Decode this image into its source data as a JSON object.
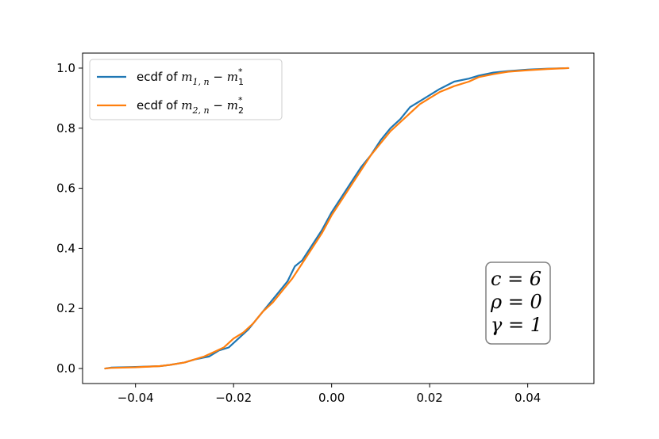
{
  "chart_data": {
    "type": "line",
    "title": "",
    "xlabel": "",
    "ylabel": "",
    "xlim": [
      -0.0508,
      0.0535
    ],
    "ylim": [
      -0.05,
      1.05
    ],
    "x_ticks": [
      -0.04,
      -0.02,
      0.0,
      0.02,
      0.04
    ],
    "x_tick_labels": [
      "−0.04",
      "−0.02",
      "0.00",
      "0.02",
      "0.04"
    ],
    "y_ticks": [
      0.0,
      0.2,
      0.4,
      0.6,
      0.8,
      1.0
    ],
    "y_tick_labels": [
      "0.0",
      "0.2",
      "0.4",
      "0.6",
      "0.8",
      "1.0"
    ],
    "grid": false,
    "legend_position": "top-left",
    "series": [
      {
        "name": "ecdf of m_{1,n} − m_1^*",
        "color": "#1f77b4",
        "x": [
          -0.0462,
          -0.045,
          -0.04,
          -0.035,
          -0.033,
          -0.03,
          -0.028,
          -0.025,
          -0.023,
          -0.021,
          -0.019,
          -0.017,
          -0.015,
          -0.013,
          -0.011,
          -0.009,
          -0.0075,
          -0.006,
          -0.004,
          -0.002,
          0.0,
          0.002,
          0.004,
          0.006,
          0.008,
          0.01,
          0.012,
          0.014,
          0.016,
          0.018,
          0.02,
          0.022,
          0.025,
          0.028,
          0.03,
          0.033,
          0.036,
          0.04,
          0.044,
          0.0483
        ],
        "y": [
          0.0,
          0.003,
          0.005,
          0.008,
          0.012,
          0.02,
          0.03,
          0.04,
          0.06,
          0.07,
          0.1,
          0.13,
          0.17,
          0.21,
          0.25,
          0.29,
          0.34,
          0.36,
          0.41,
          0.46,
          0.52,
          0.57,
          0.62,
          0.67,
          0.71,
          0.76,
          0.8,
          0.83,
          0.87,
          0.89,
          0.91,
          0.93,
          0.955,
          0.965,
          0.975,
          0.985,
          0.99,
          0.995,
          0.998,
          1.0
        ]
      },
      {
        "name": "ecdf of m_{2,n} − m_2^*",
        "color": "#ff7f0e",
        "x": [
          -0.0462,
          -0.045,
          -0.04,
          -0.035,
          -0.033,
          -0.03,
          -0.028,
          -0.026,
          -0.024,
          -0.022,
          -0.02,
          -0.018,
          -0.016,
          -0.014,
          -0.012,
          -0.01,
          -0.008,
          -0.006,
          -0.004,
          -0.002,
          0.0,
          0.002,
          0.004,
          0.006,
          0.008,
          0.01,
          0.012,
          0.014,
          0.016,
          0.018,
          0.02,
          0.022,
          0.025,
          0.028,
          0.03,
          0.033,
          0.036,
          0.04,
          0.044,
          0.0483
        ],
        "y": [
          0.0,
          0.002,
          0.004,
          0.008,
          0.012,
          0.02,
          0.03,
          0.04,
          0.055,
          0.07,
          0.1,
          0.12,
          0.15,
          0.19,
          0.22,
          0.26,
          0.3,
          0.35,
          0.4,
          0.45,
          0.51,
          0.56,
          0.61,
          0.66,
          0.71,
          0.75,
          0.79,
          0.82,
          0.85,
          0.88,
          0.9,
          0.92,
          0.94,
          0.955,
          0.97,
          0.98,
          0.988,
          0.993,
          0.997,
          1.0
        ]
      }
    ],
    "legend": {
      "entries": [
        {
          "text": "ecdf of ",
          "math_base": "m",
          "math_sub": "1, n",
          "math_minus": " − ",
          "math_base2": "m",
          "math_sub2": "1",
          "math_sup2": "*"
        },
        {
          "text": "ecdf of ",
          "math_base": "m",
          "math_sub": "2, n",
          "math_minus": " − ",
          "math_base2": "m",
          "math_sub2": "2",
          "math_sup2": "*"
        }
      ]
    },
    "annotation": {
      "position": "bottom-right",
      "lines": [
        "c = 6",
        "ρ = 0",
        "γ = 1"
      ]
    }
  }
}
